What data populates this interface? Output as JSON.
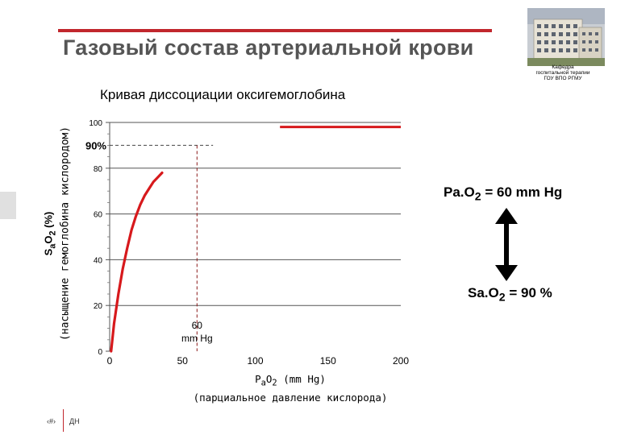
{
  "header": {
    "title": "Газовый состав артериальной крови",
    "department": [
      "Кафедра",
      "госпитальной терапии",
      "ГОУ ВПО РГМУ"
    ],
    "accent_color": "#c1272d"
  },
  "subtitle": "Кривая диссоциации оксигемоглобина",
  "y_axis": {
    "label_line1": "SaO2 (%)",
    "label_line2": "(насыщение гемоглобина кислородом)"
  },
  "x_axis": {
    "label_line1": "PaO2 (mm Hg)",
    "label_line2": "(парциальное давление кислорода)"
  },
  "annotations": {
    "sat_90": "90%",
    "p60_value": "60",
    "p60_unit": "mm Hg",
    "pao2": "PaO2 = 60 mm Hg",
    "sao2": "SaO2 = 90 %"
  },
  "chart_data": {
    "type": "line",
    "x_ticks": [
      0,
      50,
      100,
      150,
      200
    ],
    "y_ticks": [
      0,
      20,
      40,
      60,
      80,
      100
    ],
    "xlim": [
      0,
      200
    ],
    "ylim": [
      0,
      100
    ],
    "series": [
      {
        "color": "#d7191c",
        "x": [
          1,
          3,
          6,
          9,
          12,
          15,
          18,
          21,
          24,
          27,
          30,
          33,
          36
        ],
        "y": [
          0,
          12,
          25,
          36,
          45,
          53,
          59,
          64,
          68,
          71,
          74,
          76,
          78
        ]
      }
    ],
    "top_segment": {
      "color": "#d7191c",
      "x": [
        117,
        200
      ],
      "y": [
        98,
        98
      ]
    },
    "reference_lines": [
      {
        "orientation": "horizontal",
        "y": 90,
        "x_from": 0,
        "x_to": 71
      },
      {
        "orientation": "vertical",
        "x": 60,
        "y_from": 0,
        "y_to": 90
      }
    ]
  },
  "footer": {
    "slide_number": "‹#›",
    "author": "ДН"
  }
}
